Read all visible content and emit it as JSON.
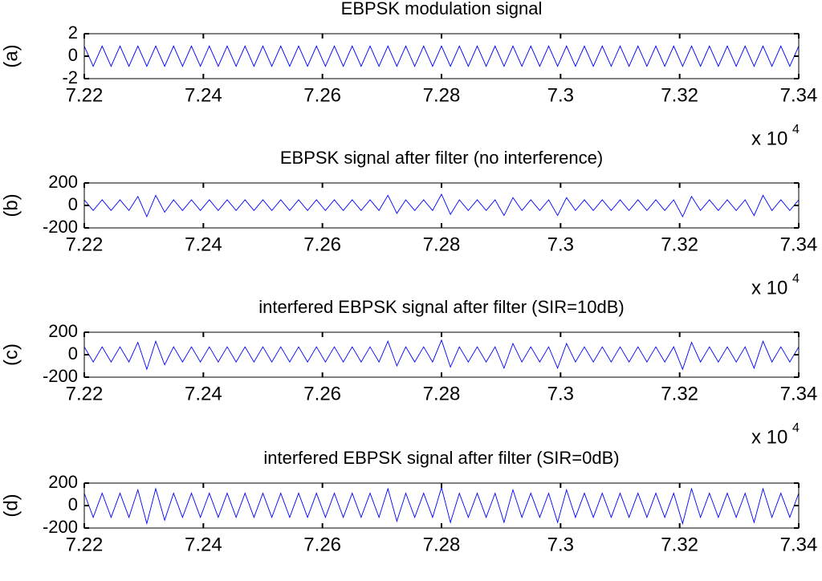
{
  "chart_data": [
    {
      "type": "line",
      "title": "EBPSK modulation signal",
      "ylabel": "(a)",
      "x": [
        72200,
        72215,
        72230,
        72245,
        72260,
        72275,
        72290,
        72305,
        72320,
        72335,
        72350,
        72365,
        72380,
        72395,
        72410,
        72425,
        72440,
        72455,
        72470,
        72485,
        72500,
        72515,
        72530,
        72545,
        72560,
        72575,
        72590,
        72605,
        72620,
        72635,
        72650,
        72665,
        72680,
        72695,
        72710,
        72725,
        72740,
        72755,
        72770,
        72785,
        72800,
        72815,
        72830,
        72845,
        72860,
        72875,
        72890,
        72905,
        72920,
        72935,
        72950,
        72965,
        72980,
        72995,
        73010,
        73025,
        73040,
        73055,
        73070,
        73085,
        73100,
        73115,
        73130,
        73145,
        73160,
        73175,
        73190,
        73205,
        73220,
        73235,
        73250,
        73265,
        73280,
        73295,
        73310,
        73325,
        73340,
        73355,
        73370,
        73385,
        73400
      ],
      "series": [
        {
          "color": "#0000ff",
          "values": [
            0.9,
            -0.9,
            0.9,
            -0.9,
            0.9,
            -0.9,
            0.9,
            -0.9,
            0.9,
            -0.9,
            0.9,
            -0.9,
            0.9,
            -0.9,
            0.9,
            -0.9,
            0.9,
            -0.9,
            0.9,
            -0.9,
            0.9,
            -0.9,
            0.9,
            -0.9,
            0.9,
            -0.9,
            0.9,
            -0.9,
            0.9,
            -0.9,
            0.9,
            -0.9,
            0.9,
            -0.9,
            0.9,
            -0.9,
            0.9,
            -0.9,
            0.9,
            -0.9,
            0.9,
            -0.9,
            0.9,
            -0.9,
            0.9,
            -0.9,
            0.9,
            -0.9,
            0.9,
            -0.9,
            0.9,
            -0.9,
            0.9,
            -0.9,
            0.9,
            -0.9,
            0.9,
            -0.9,
            0.9,
            -0.9,
            0.9,
            -0.9,
            0.9,
            -0.9,
            0.9,
            -0.9,
            0.9,
            -0.9,
            0.9,
            -0.9,
            0.9,
            -0.9,
            0.9,
            -0.9,
            0.9,
            -0.9,
            0.9,
            -0.9,
            0.9,
            -0.9,
            0.9
          ]
        }
      ],
      "xlim": [
        72200,
        73400
      ],
      "xticks": [
        {
          "value": 72200,
          "label": "7.22"
        },
        {
          "value": 72400,
          "label": "7.24"
        },
        {
          "value": 72600,
          "label": "7.26"
        },
        {
          "value": 72800,
          "label": "7.28"
        },
        {
          "value": 73000,
          "label": "7.3"
        },
        {
          "value": 73200,
          "label": "7.32"
        },
        {
          "value": 73400,
          "label": "7.34"
        }
      ],
      "x_offset_label": "x 10",
      "x_offset_exponent": "4",
      "ylim": [
        -2,
        2
      ],
      "yticks": [
        -2,
        0,
        2
      ]
    },
    {
      "type": "line",
      "title": "EBPSK signal after filter (no interference)",
      "ylabel": "(b)",
      "x": [
        72200,
        72215,
        72230,
        72245,
        72260,
        72275,
        72290,
        72305,
        72320,
        72335,
        72350,
        72365,
        72380,
        72395,
        72410,
        72425,
        72440,
        72455,
        72470,
        72485,
        72500,
        72515,
        72530,
        72545,
        72560,
        72575,
        72590,
        72605,
        72620,
        72635,
        72650,
        72665,
        72680,
        72695,
        72710,
        72725,
        72740,
        72755,
        72770,
        72785,
        72800,
        72815,
        72830,
        72845,
        72860,
        72875,
        72890,
        72905,
        72920,
        72935,
        72950,
        72965,
        72980,
        72995,
        73010,
        73025,
        73040,
        73055,
        73070,
        73085,
        73100,
        73115,
        73130,
        73145,
        73160,
        73175,
        73190,
        73205,
        73220,
        73235,
        73250,
        73265,
        73280,
        73295,
        73310,
        73325,
        73340,
        73355,
        73370,
        73385,
        73400
      ],
      "series": [
        {
          "color": "#0000ff",
          "values": [
            50,
            -45,
            50,
            -45,
            50,
            -45,
            80,
            -100,
            90,
            -60,
            50,
            -45,
            50,
            -45,
            50,
            -45,
            50,
            -45,
            50,
            -45,
            50,
            -45,
            50,
            -45,
            50,
            -45,
            50,
            -45,
            50,
            -45,
            50,
            -45,
            50,
            -45,
            90,
            -70,
            50,
            -45,
            50,
            -45,
            100,
            -80,
            50,
            -45,
            50,
            -45,
            50,
            -90,
            70,
            -45,
            50,
            -45,
            50,
            -90,
            70,
            -45,
            50,
            -45,
            50,
            -45,
            50,
            -45,
            50,
            -45,
            50,
            -45,
            50,
            -100,
            80,
            -45,
            50,
            -45,
            50,
            -45,
            50,
            -90,
            90,
            -45,
            50,
            -45,
            50
          ]
        }
      ],
      "xlim": [
        72200,
        73400
      ],
      "xticks": [
        {
          "value": 72200,
          "label": "7.22"
        },
        {
          "value": 72400,
          "label": "7.24"
        },
        {
          "value": 72600,
          "label": "7.26"
        },
        {
          "value": 72800,
          "label": "7.28"
        },
        {
          "value": 73000,
          "label": "7.3"
        },
        {
          "value": 73200,
          "label": "7.32"
        },
        {
          "value": 73400,
          "label": "7.34"
        }
      ],
      "x_offset_label": "x 10",
      "x_offset_exponent": "4",
      "ylim": [
        -200,
        200
      ],
      "yticks": [
        -200,
        0,
        200
      ]
    },
    {
      "type": "line",
      "title": "interfered EBPSK signal after filter (SIR=10dB)",
      "ylabel": "(c)",
      "x": [
        72200,
        72215,
        72230,
        72245,
        72260,
        72275,
        72290,
        72305,
        72320,
        72335,
        72350,
        72365,
        72380,
        72395,
        72410,
        72425,
        72440,
        72455,
        72470,
        72485,
        72500,
        72515,
        72530,
        72545,
        72560,
        72575,
        72590,
        72605,
        72620,
        72635,
        72650,
        72665,
        72680,
        72695,
        72710,
        72725,
        72740,
        72755,
        72770,
        72785,
        72800,
        72815,
        72830,
        72845,
        72860,
        72875,
        72890,
        72905,
        72920,
        72935,
        72950,
        72965,
        72980,
        72995,
        73010,
        73025,
        73040,
        73055,
        73070,
        73085,
        73100,
        73115,
        73130,
        73145,
        73160,
        73175,
        73190,
        73205,
        73220,
        73235,
        73250,
        73265,
        73280,
        73295,
        73310,
        73325,
        73340,
        73355,
        73370,
        73385,
        73400
      ],
      "series": [
        {
          "color": "#0000ff",
          "values": [
            70,
            -65,
            70,
            -65,
            70,
            -65,
            110,
            -130,
            120,
            -90,
            70,
            -65,
            70,
            -65,
            70,
            -65,
            70,
            -65,
            70,
            -65,
            70,
            -65,
            70,
            -65,
            70,
            -65,
            70,
            -65,
            70,
            -65,
            70,
            -65,
            70,
            -65,
            120,
            -100,
            70,
            -65,
            70,
            -65,
            130,
            -110,
            70,
            -65,
            70,
            -65,
            70,
            -120,
            100,
            -65,
            70,
            -65,
            70,
            -120,
            100,
            -65,
            70,
            -65,
            70,
            -65,
            70,
            -65,
            70,
            -65,
            70,
            -65,
            70,
            -130,
            110,
            -65,
            70,
            -65,
            70,
            -65,
            70,
            -120,
            120,
            -65,
            70,
            -65,
            70
          ]
        }
      ],
      "xlim": [
        72200,
        73400
      ],
      "xticks": [
        {
          "value": 72200,
          "label": "7.22"
        },
        {
          "value": 72400,
          "label": "7.24"
        },
        {
          "value": 72600,
          "label": "7.26"
        },
        {
          "value": 72800,
          "label": "7.28"
        },
        {
          "value": 73000,
          "label": "7.3"
        },
        {
          "value": 73200,
          "label": "7.32"
        },
        {
          "value": 73400,
          "label": "7.34"
        }
      ],
      "x_offset_label": "x 10",
      "x_offset_exponent": "4",
      "ylim": [
        -200,
        200
      ],
      "yticks": [
        -200,
        0,
        200
      ]
    },
    {
      "type": "line",
      "title": "interfered EBPSK signal after filter (SIR=0dB)",
      "ylabel": "(d)",
      "x": [
        72200,
        72215,
        72230,
        72245,
        72260,
        72275,
        72290,
        72305,
        72320,
        72335,
        72350,
        72365,
        72380,
        72395,
        72410,
        72425,
        72440,
        72455,
        72470,
        72485,
        72500,
        72515,
        72530,
        72545,
        72560,
        72575,
        72590,
        72605,
        72620,
        72635,
        72650,
        72665,
        72680,
        72695,
        72710,
        72725,
        72740,
        72755,
        72770,
        72785,
        72800,
        72815,
        72830,
        72845,
        72860,
        72875,
        72890,
        72905,
        72920,
        72935,
        72950,
        72965,
        72980,
        72995,
        73010,
        73025,
        73040,
        73055,
        73070,
        73085,
        73100,
        73115,
        73130,
        73145,
        73160,
        73175,
        73190,
        73205,
        73220,
        73235,
        73250,
        73265,
        73280,
        73295,
        73310,
        73325,
        73340,
        73355,
        73370,
        73385,
        73400
      ],
      "series": [
        {
          "color": "#0000ff",
          "values": [
            110,
            -105,
            110,
            -105,
            110,
            -105,
            140,
            -160,
            150,
            -130,
            110,
            -105,
            110,
            -105,
            110,
            -105,
            110,
            -105,
            110,
            -105,
            110,
            -105,
            110,
            -105,
            110,
            -105,
            110,
            -105,
            110,
            -105,
            110,
            -105,
            110,
            -105,
            150,
            -140,
            110,
            -105,
            110,
            -105,
            160,
            -150,
            110,
            -105,
            110,
            -105,
            110,
            -150,
            140,
            -105,
            110,
            -105,
            110,
            -150,
            140,
            -105,
            110,
            -105,
            110,
            -105,
            110,
            -105,
            110,
            -105,
            110,
            -105,
            110,
            -160,
            150,
            -105,
            110,
            -105,
            110,
            -105,
            110,
            -150,
            150,
            -105,
            110,
            -105,
            110
          ]
        }
      ],
      "xlim": [
        72200,
        73400
      ],
      "xticks": [
        {
          "value": 72200,
          "label": "7.22"
        },
        {
          "value": 72400,
          "label": "7.24"
        },
        {
          "value": 72600,
          "label": "7.26"
        },
        {
          "value": 72800,
          "label": "7.28"
        },
        {
          "value": 73000,
          "label": "7.3"
        },
        {
          "value": 73200,
          "label": "7.32"
        },
        {
          "value": 73400,
          "label": "7.34"
        }
      ],
      "ylim": [
        -200,
        200
      ],
      "yticks": [
        -200,
        0,
        200
      ]
    }
  ]
}
